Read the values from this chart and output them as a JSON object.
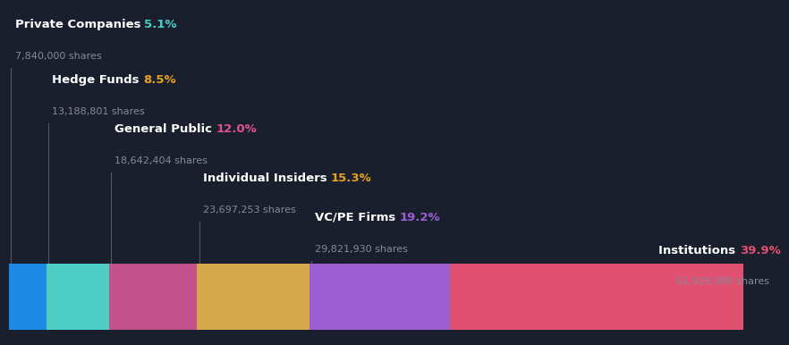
{
  "background_color": "#1a1f2e",
  "categories": [
    "Private Companies",
    "Hedge Funds",
    "General Public",
    "Individual Insiders",
    "VC/PE Firms",
    "Institutions"
  ],
  "percentages": [
    5.1,
    8.5,
    12.0,
    15.3,
    19.2,
    39.9
  ],
  "shares": [
    "7,840,000 shares",
    "13,188,801 shares",
    "18,642,404 shares",
    "23,697,253 shares",
    "29,821,930 shares",
    "61,929,998 shares"
  ],
  "bar_colors": [
    "#1e88e5",
    "#4ecdc4",
    "#c2528b",
    "#d4a84b",
    "#9c5fd4",
    "#e05070"
  ],
  "pct_colors": [
    "#4ecdc4",
    "#e8a020",
    "#e05090",
    "#e8a020",
    "#9c5fd4",
    "#e05070"
  ],
  "label_color": "#ffffff",
  "shares_color": "#888899",
  "connector_color": "#555566",
  "fig_width": 8.21,
  "fig_height": 3.66,
  "label_font_size": 9.5,
  "shares_font_size": 8.0
}
